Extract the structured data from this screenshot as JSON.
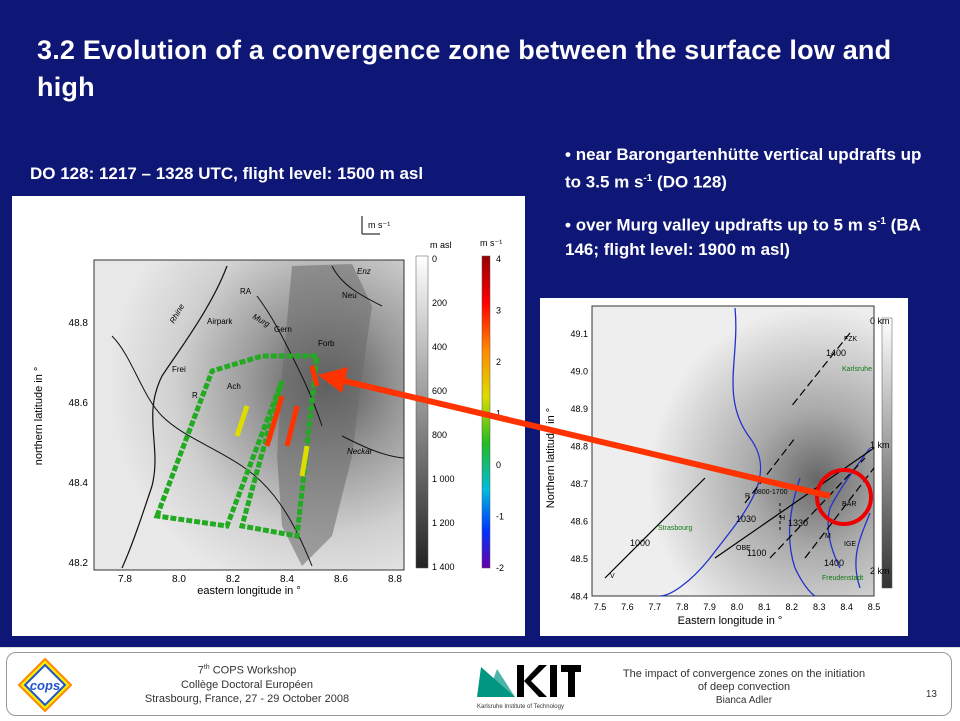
{
  "title": "3.2 Evolution of a convergence zone between the surface low and high",
  "subtitle": "DO 128: 1217 – 1328 UTC, flight level: 1500 m asl",
  "bullets": [
    {
      "pre": "near Barongartenhütte vertical updrafts up to 3.5 m s",
      "sup": "-1",
      "post": " (DO 128)"
    },
    {
      "pre": "over Murg valley updrafts up to 5 m s",
      "sup": "-1",
      "post": " (BA 146; flight level: 1900 m asl)"
    }
  ],
  "left_map": {
    "xlabel": "eastern longitude in °",
    "ylabel": "northern latitude in °",
    "xticks": [
      "7.8",
      "8.0",
      "8.2",
      "8.4",
      "8.6",
      "8.8"
    ],
    "yticks": [
      "48.8",
      "48.6",
      "48.4",
      "48.2"
    ],
    "elev_unit": "m asl",
    "elev_ticks": [
      "0",
      "200",
      "400",
      "600",
      "800",
      "1 000",
      "1 200",
      "1 400"
    ],
    "w_unit": "m s⁻¹",
    "w_ticks": [
      "4",
      "3",
      "2",
      "1",
      "0",
      "-1",
      "-2"
    ],
    "vector_key": "m s⁻¹",
    "places": [
      "RA",
      "Airpark",
      "Gern",
      "Neu",
      "Frei",
      "R",
      "Ach",
      "Forb",
      "Enz",
      "Murg",
      "Rhine",
      "Neckar"
    ],
    "colors": {
      "track_low": "#22aa22",
      "track_mid": "#dddd00",
      "track_high": "#ff3300"
    }
  },
  "right_map": {
    "xlabel": "Eastern longitude in °",
    "ylabel": "Northern latitude in °",
    "xticks": [
      "7.5",
      "7.6",
      "7.7",
      "7.8",
      "7.9",
      "8.0",
      "8.1",
      "8.2",
      "8.3",
      "8.4",
      "8.5"
    ],
    "yticks": [
      "49.1",
      "49.0",
      "48.9",
      "48.8",
      "48.7",
      "48.6",
      "48.5",
      "48.4"
    ],
    "scale_labels": [
      "0 km",
      "1 km",
      "2 km"
    ],
    "places": [
      "FZK",
      "Karlsruhe",
      "R",
      "H",
      "BAR",
      "M",
      "IGE",
      "OBE",
      "Strasbourg",
      "Freudenstadt",
      "V"
    ],
    "line_labels": [
      "1400",
      "1030",
      "1330",
      "1100",
      "1400",
      "1000",
      "0800-1700"
    ]
  },
  "footer": {
    "workshop_num": "7",
    "workshop_sup": "th",
    "workshop_text": " COPS Workshop",
    "college": "Collège Doctoral Européen",
    "location": "Strasbourg, France, 27 - 29 October 2008",
    "talk_line1": "The impact of convergence zones on the initiation",
    "talk_line2": "of deep convection",
    "author": "Bianca Adler",
    "page": "13",
    "kit_tagline": "Karlsruhe Institute of Technology",
    "cops_logo": "cops"
  }
}
